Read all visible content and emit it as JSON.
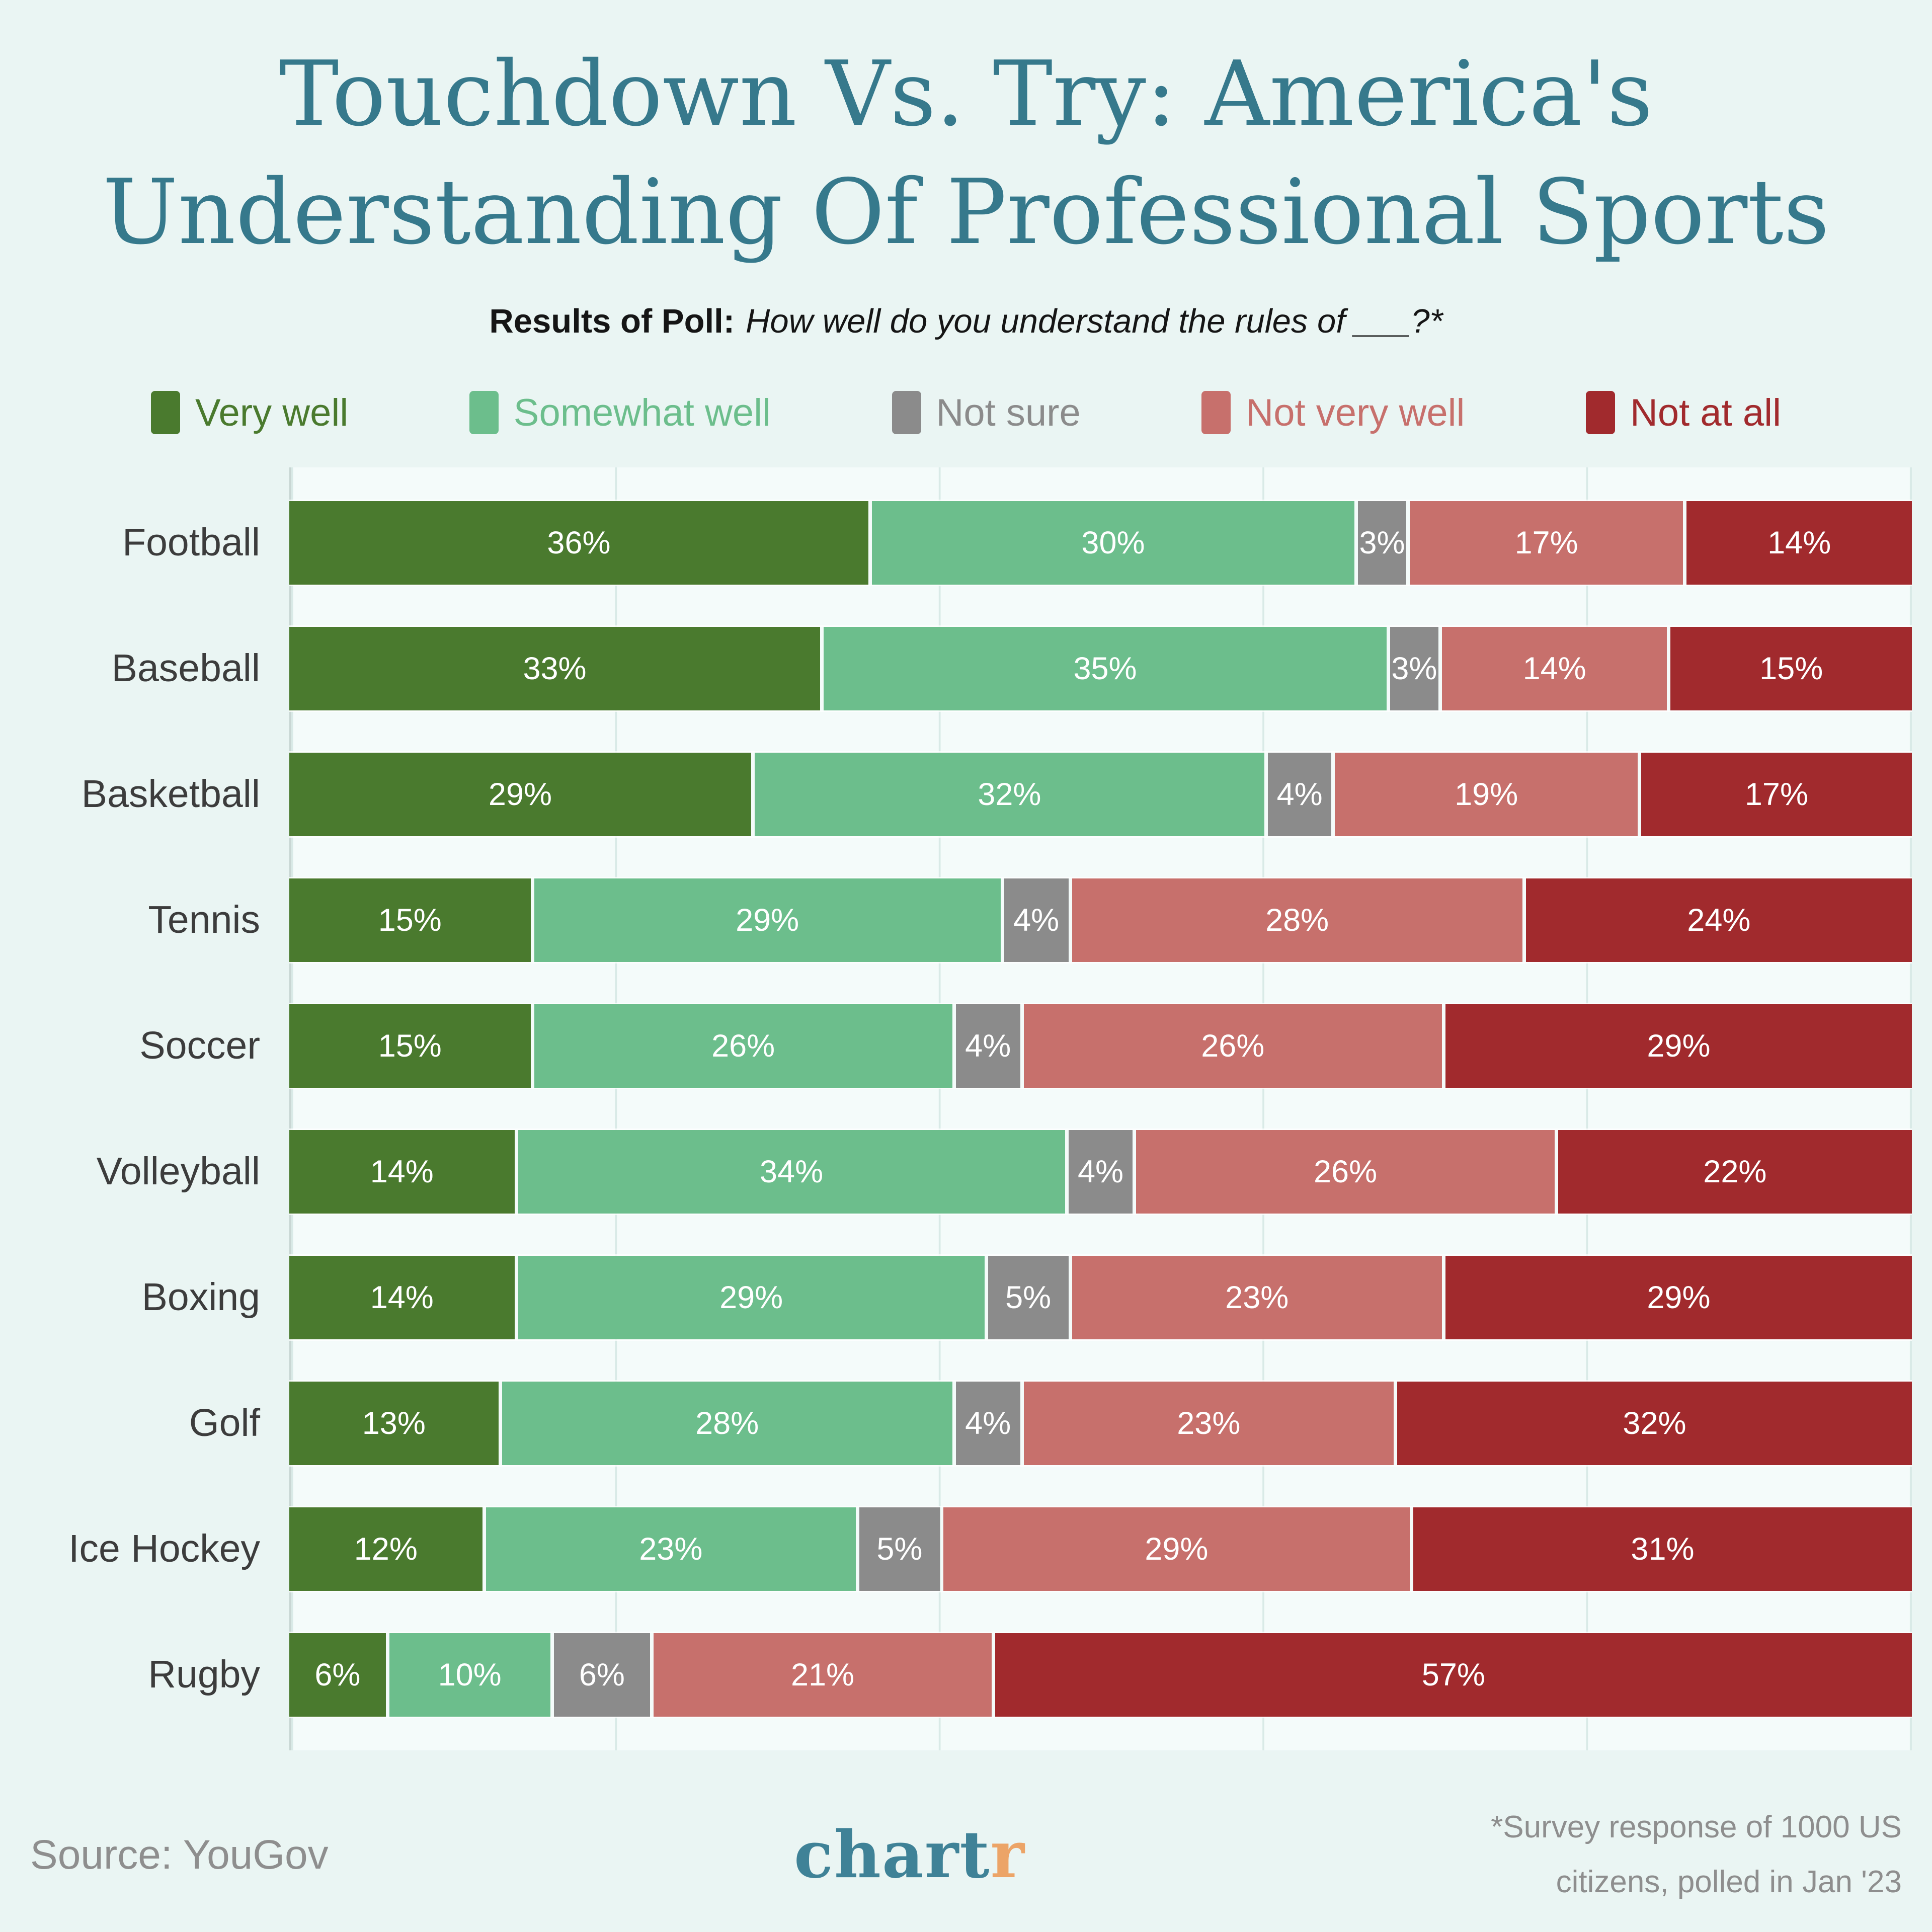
{
  "title": {
    "line1": "Touchdown Vs. Try: America's",
    "line2": "Understanding Of Professional Sports"
  },
  "subtitle": {
    "lead": "Results of Poll:",
    "question": "How well do you understand the rules of ___?*"
  },
  "chart_data": {
    "type": "bar",
    "orientation": "horizontal",
    "stacked": true,
    "categories": [
      "Football",
      "Baseball",
      "Basketball",
      "Tennis",
      "Soccer",
      "Volleyball",
      "Boxing",
      "Golf",
      "Ice Hockey",
      "Rugby"
    ],
    "series": [
      {
        "name": "Very well",
        "color": "#4a7a2e",
        "values": [
          36,
          33,
          29,
          15,
          15,
          14,
          14,
          13,
          12,
          6
        ]
      },
      {
        "name": "Somewhat well",
        "color": "#6cbe8c",
        "values": [
          30,
          35,
          32,
          29,
          26,
          34,
          29,
          28,
          23,
          10
        ]
      },
      {
        "name": "Not sure",
        "color": "#8b8b8b",
        "values": [
          3,
          3,
          4,
          4,
          4,
          4,
          5,
          4,
          5,
          6
        ]
      },
      {
        "name": "Not very well",
        "color": "#c7706c",
        "values": [
          17,
          14,
          19,
          28,
          26,
          26,
          23,
          23,
          29,
          21
        ]
      },
      {
        "name": "Not at all",
        "color": "#a12a2d",
        "values": [
          14,
          15,
          17,
          24,
          29,
          22,
          29,
          32,
          31,
          57
        ]
      }
    ],
    "value_suffix": "%",
    "xlim": [
      0,
      100
    ],
    "grid": "vertical gridlines every 20%",
    "legend_position": "top"
  },
  "footer": {
    "source": "Source: YouGov",
    "logo": {
      "part1": "chart",
      "part2": "r"
    },
    "footnote_line1": "*Survey response of 1000 US",
    "footnote_line2": "citizens, polled in Jan '23"
  },
  "colors": {
    "background": "#eaf5f3",
    "plot_background": "#f4fbfa",
    "title": "#36798c",
    "category_label": "#3c3c3c",
    "segment_text": "#ffffff",
    "muted_text": "#8e8e8e",
    "gridline": "#d9eae7",
    "axis": "#c8d6d3",
    "logo_teal": "#3f8297",
    "logo_orange": "#eca467"
  }
}
